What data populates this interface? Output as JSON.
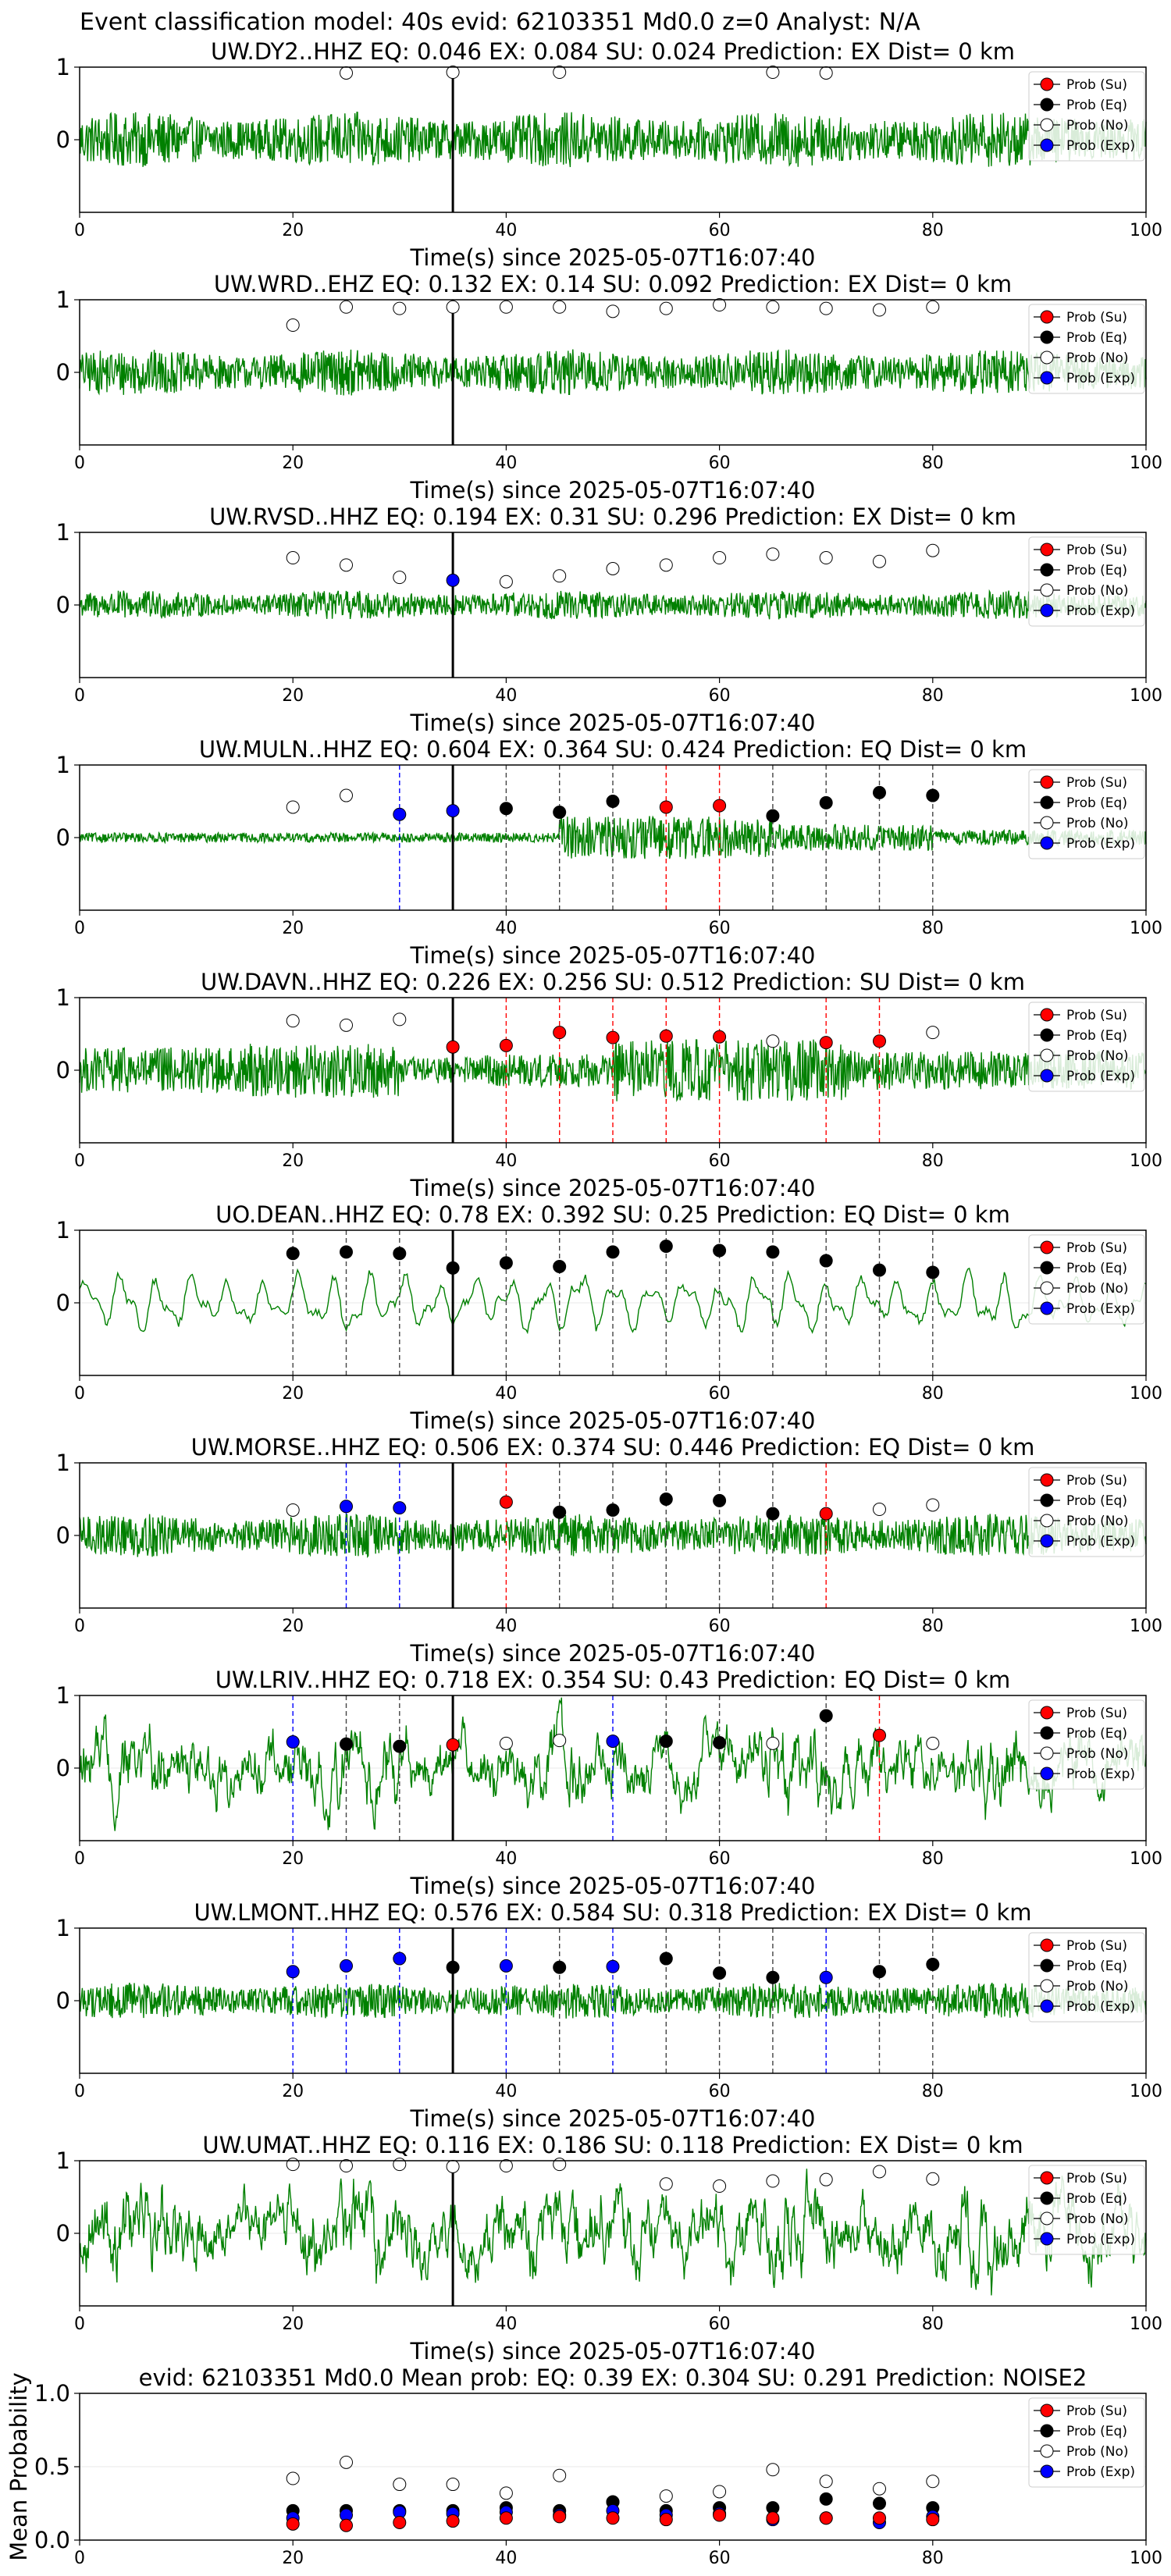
{
  "figure_title": "Event classification model: 40s evid: 62103351 Md0.0 z=0 Analyst: N/A",
  "colors": {
    "waveform": "#008000",
    "su": "#ff0000",
    "eq": "#000000",
    "no": "#ffffff",
    "exp": "#0000ff",
    "pick_line": "#000000",
    "frame": "#000000"
  },
  "legend": {
    "placement": "top-right",
    "entries": [
      {
        "key": "su",
        "label": "Prob (Su)"
      },
      {
        "key": "eq",
        "label": "Prob (Eq)"
      },
      {
        "key": "no",
        "label": "Prob (No)"
      },
      {
        "key": "exp",
        "label": "Prob (Exp)"
      }
    ]
  },
  "chart_data": [
    {
      "type": "line",
      "station": "UW.DY2..HHZ",
      "title": "UW.DY2..HHZ   EQ: 0.046  EX: 0.084  SU: 0.024   Prediction: EX    Dist= 0 km",
      "xlabel": "Time(s) since 2025-05-07T16:07:40",
      "xlim": [
        0,
        100
      ],
      "ylim": [
        -1,
        1
      ],
      "xticks": [
        0,
        20,
        40,
        60,
        80,
        100
      ],
      "yticks": [
        0,
        1
      ],
      "pick_time": 35,
      "waveform": {
        "amplitude": 0.38,
        "style": "noise"
      },
      "windows": [
        {
          "t": 25,
          "class": "no",
          "p": 0.92
        },
        {
          "t": 35,
          "class": "no",
          "p": 0.93
        },
        {
          "t": 45,
          "class": "no",
          "p": 0.93
        },
        {
          "t": 65,
          "class": "no",
          "p": 0.93
        },
        {
          "t": 70,
          "class": "no",
          "p": 0.92
        }
      ]
    },
    {
      "type": "line",
      "station": "UW.WRD..EHZ",
      "title": "UW.WRD..EHZ   EQ: 0.132  EX: 0.14  SU: 0.092   Prediction: EX    Dist= 0 km",
      "xlabel": "Time(s) since 2025-05-07T16:07:40",
      "xlim": [
        0,
        100
      ],
      "ylim": [
        -1,
        1
      ],
      "xticks": [
        0,
        20,
        40,
        60,
        80,
        100
      ],
      "yticks": [
        0,
        1
      ],
      "pick_time": 35,
      "waveform": {
        "amplitude": 0.32,
        "style": "noise"
      },
      "windows": [
        {
          "t": 20,
          "class": "no",
          "p": 0.65
        },
        {
          "t": 25,
          "class": "no",
          "p": 0.9
        },
        {
          "t": 30,
          "class": "no",
          "p": 0.88
        },
        {
          "t": 35,
          "class": "no",
          "p": 0.9
        },
        {
          "t": 40,
          "class": "no",
          "p": 0.9
        },
        {
          "t": 45,
          "class": "no",
          "p": 0.9
        },
        {
          "t": 50,
          "class": "no",
          "p": 0.84
        },
        {
          "t": 55,
          "class": "no",
          "p": 0.88
        },
        {
          "t": 60,
          "class": "no",
          "p": 0.93
        },
        {
          "t": 65,
          "class": "no",
          "p": 0.9
        },
        {
          "t": 70,
          "class": "no",
          "p": 0.88
        },
        {
          "t": 75,
          "class": "no",
          "p": 0.86
        },
        {
          "t": 80,
          "class": "no",
          "p": 0.9
        }
      ]
    },
    {
      "type": "line",
      "station": "UW.RVSD..HHZ",
      "title": "UW.RVSD..HHZ   EQ: 0.194  EX: 0.31  SU: 0.296   Prediction: EX    Dist= 0 km",
      "xlabel": "Time(s) since 2025-05-07T16:07:40",
      "xlim": [
        0,
        100
      ],
      "ylim": [
        -1,
        1
      ],
      "xticks": [
        0,
        20,
        40,
        60,
        80,
        100
      ],
      "yticks": [
        0,
        1
      ],
      "pick_time": 35,
      "waveform": {
        "amplitude": 0.2,
        "style": "noise"
      },
      "windows": [
        {
          "t": 20,
          "class": "no",
          "p": 0.65
        },
        {
          "t": 25,
          "class": "no",
          "p": 0.55
        },
        {
          "t": 30,
          "class": "no",
          "p": 0.38
        },
        {
          "t": 35,
          "class": "exp",
          "p": 0.34
        },
        {
          "t": 40,
          "class": "no",
          "p": 0.32
        },
        {
          "t": 45,
          "class": "no",
          "p": 0.4
        },
        {
          "t": 50,
          "class": "no",
          "p": 0.5
        },
        {
          "t": 55,
          "class": "no",
          "p": 0.55
        },
        {
          "t": 60,
          "class": "no",
          "p": 0.65
        },
        {
          "t": 65,
          "class": "no",
          "p": 0.7
        },
        {
          "t": 70,
          "class": "no",
          "p": 0.65
        },
        {
          "t": 75,
          "class": "no",
          "p": 0.6
        },
        {
          "t": 80,
          "class": "no",
          "p": 0.75
        }
      ]
    },
    {
      "type": "line",
      "station": "UW.MULN..HHZ",
      "title": "UW.MULN..HHZ   EQ: 0.604  EX: 0.364  SU: 0.424   Prediction: EQ    Dist= 0 km",
      "xlabel": "Time(s) since 2025-05-07T16:07:40",
      "xlim": [
        0,
        100
      ],
      "ylim": [
        -1,
        1
      ],
      "xticks": [
        0,
        20,
        40,
        60,
        80,
        100
      ],
      "yticks": [
        0,
        1
      ],
      "pick_time": 35,
      "waveform": {
        "amplitude": 0.3,
        "style": "quiet-then-event"
      },
      "windows": [
        {
          "t": 20,
          "class": "no",
          "p": 0.42
        },
        {
          "t": 25,
          "class": "no",
          "p": 0.58
        },
        {
          "t": 30,
          "class": "exp",
          "p": 0.32
        },
        {
          "t": 35,
          "class": "exp",
          "p": 0.37
        },
        {
          "t": 40,
          "class": "eq",
          "p": 0.4
        },
        {
          "t": 45,
          "class": "eq",
          "p": 0.35
        },
        {
          "t": 50,
          "class": "eq",
          "p": 0.5
        },
        {
          "t": 55,
          "class": "su",
          "p": 0.42
        },
        {
          "t": 60,
          "class": "su",
          "p": 0.44
        },
        {
          "t": 65,
          "class": "eq",
          "p": 0.3
        },
        {
          "t": 70,
          "class": "eq",
          "p": 0.48
        },
        {
          "t": 75,
          "class": "eq",
          "p": 0.62
        },
        {
          "t": 80,
          "class": "eq",
          "p": 0.58
        }
      ]
    },
    {
      "type": "line",
      "station": "UW.DAVN..HHZ",
      "title": "UW.DAVN..HHZ   EQ: 0.226  EX: 0.256  SU: 0.512   Prediction: SU    Dist= 0 km",
      "xlabel": "Time(s) since 2025-05-07T16:07:40",
      "xlim": [
        0,
        100
      ],
      "ylim": [
        -1,
        1
      ],
      "xticks": [
        0,
        20,
        40,
        60,
        80,
        100
      ],
      "yticks": [
        0,
        1
      ],
      "pick_time": 35,
      "waveform": {
        "amplitude": 0.45,
        "style": "bursty"
      },
      "windows": [
        {
          "t": 20,
          "class": "no",
          "p": 0.68
        },
        {
          "t": 25,
          "class": "no",
          "p": 0.62
        },
        {
          "t": 30,
          "class": "no",
          "p": 0.7
        },
        {
          "t": 35,
          "class": "su",
          "p": 0.32
        },
        {
          "t": 40,
          "class": "su",
          "p": 0.34
        },
        {
          "t": 45,
          "class": "su",
          "p": 0.52
        },
        {
          "t": 50,
          "class": "su",
          "p": 0.45
        },
        {
          "t": 55,
          "class": "su",
          "p": 0.47
        },
        {
          "t": 60,
          "class": "su",
          "p": 0.46
        },
        {
          "t": 65,
          "class": "no",
          "p": 0.4
        },
        {
          "t": 70,
          "class": "su",
          "p": 0.38
        },
        {
          "t": 75,
          "class": "su",
          "p": 0.4
        },
        {
          "t": 80,
          "class": "no",
          "p": 0.52
        }
      ]
    },
    {
      "type": "line",
      "station": "UO.DEAN..HHZ",
      "title": "UO.DEAN..HHZ   EQ: 0.78  EX: 0.392  SU: 0.25   Prediction: EQ    Dist= 0 km",
      "xlabel": "Time(s) since 2025-05-07T16:07:40",
      "xlim": [
        0,
        100
      ],
      "ylim": [
        -1,
        1
      ],
      "xticks": [
        0,
        20,
        40,
        60,
        80,
        100
      ],
      "yticks": [
        0,
        1
      ],
      "pick_time": 35,
      "waveform": {
        "amplitude": 0.5,
        "style": "smooth"
      },
      "windows": [
        {
          "t": 20,
          "class": "eq",
          "p": 0.68
        },
        {
          "t": 25,
          "class": "eq",
          "p": 0.7
        },
        {
          "t": 30,
          "class": "eq",
          "p": 0.68
        },
        {
          "t": 35,
          "class": "eq",
          "p": 0.48
        },
        {
          "t": 40,
          "class": "eq",
          "p": 0.55
        },
        {
          "t": 45,
          "class": "eq",
          "p": 0.5
        },
        {
          "t": 50,
          "class": "eq",
          "p": 0.7
        },
        {
          "t": 55,
          "class": "eq",
          "p": 0.78
        },
        {
          "t": 60,
          "class": "eq",
          "p": 0.72
        },
        {
          "t": 65,
          "class": "eq",
          "p": 0.7
        },
        {
          "t": 70,
          "class": "eq",
          "p": 0.58
        },
        {
          "t": 75,
          "class": "eq",
          "p": 0.45
        },
        {
          "t": 80,
          "class": "eq",
          "p": 0.42
        }
      ]
    },
    {
      "type": "line",
      "station": "UW.MORSE..HHZ",
      "title": "UW.MORSE..HHZ   EQ: 0.506  EX: 0.374  SU: 0.446   Prediction: EQ    Dist= 0 km",
      "xlabel": "Time(s) since 2025-05-07T16:07:40",
      "xlim": [
        0,
        100
      ],
      "ylim": [
        -1,
        1
      ],
      "xticks": [
        0,
        20,
        40,
        60,
        80,
        100
      ],
      "yticks": [
        0,
        1
      ],
      "pick_time": 35,
      "waveform": {
        "amplitude": 0.3,
        "style": "noise"
      },
      "windows": [
        {
          "t": 20,
          "class": "no",
          "p": 0.35
        },
        {
          "t": 25,
          "class": "exp",
          "p": 0.4
        },
        {
          "t": 30,
          "class": "exp",
          "p": 0.38
        },
        {
          "t": 40,
          "class": "su",
          "p": 0.46
        },
        {
          "t": 45,
          "class": "eq",
          "p": 0.32
        },
        {
          "t": 50,
          "class": "eq",
          "p": 0.35
        },
        {
          "t": 55,
          "class": "eq",
          "p": 0.5
        },
        {
          "t": 60,
          "class": "eq",
          "p": 0.48
        },
        {
          "t": 65,
          "class": "eq",
          "p": 0.3
        },
        {
          "t": 70,
          "class": "su",
          "p": 0.3
        },
        {
          "t": 75,
          "class": "no",
          "p": 0.36
        },
        {
          "t": 80,
          "class": "no",
          "p": 0.42
        }
      ]
    },
    {
      "type": "line",
      "station": "UW.LRIV..HHZ",
      "title": "UW.LRIV..HHZ   EQ: 0.718  EX: 0.354  SU: 0.43   Prediction: EQ    Dist= 0 km",
      "xlabel": "Time(s) since 2025-05-07T16:07:40",
      "xlim": [
        0,
        100
      ],
      "ylim": [
        -1,
        1
      ],
      "xticks": [
        0,
        20,
        40,
        60,
        80,
        100
      ],
      "yticks": [
        0,
        1
      ],
      "pick_time": 35,
      "waveform": {
        "amplitude": 0.45,
        "style": "smooth-noise"
      },
      "windows": [
        {
          "t": 20,
          "class": "exp",
          "p": 0.36
        },
        {
          "t": 25,
          "class": "eq",
          "p": 0.33
        },
        {
          "t": 30,
          "class": "eq",
          "p": 0.3
        },
        {
          "t": 35,
          "class": "su",
          "p": 0.32
        },
        {
          "t": 40,
          "class": "no",
          "p": 0.34
        },
        {
          "t": 45,
          "class": "no",
          "p": 0.38
        },
        {
          "t": 50,
          "class": "exp",
          "p": 0.37
        },
        {
          "t": 55,
          "class": "eq",
          "p": 0.37
        },
        {
          "t": 60,
          "class": "eq",
          "p": 0.35
        },
        {
          "t": 65,
          "class": "no",
          "p": 0.34
        },
        {
          "t": 70,
          "class": "eq",
          "p": 0.72
        },
        {
          "t": 75,
          "class": "su",
          "p": 0.45
        },
        {
          "t": 80,
          "class": "no",
          "p": 0.34
        }
      ]
    },
    {
      "type": "line",
      "station": "UW.LMONT..HHZ",
      "title": "UW.LMONT..HHZ   EQ: 0.576  EX: 0.584  SU: 0.318   Prediction: EX    Dist= 0 km",
      "xlabel": "Time(s) since 2025-05-07T16:07:40",
      "xlim": [
        0,
        100
      ],
      "ylim": [
        -1,
        1
      ],
      "xticks": [
        0,
        20,
        40,
        60,
        80,
        100
      ],
      "yticks": [
        0,
        1
      ],
      "pick_time": 35,
      "waveform": {
        "amplitude": 0.25,
        "style": "noise"
      },
      "windows": [
        {
          "t": 20,
          "class": "exp",
          "p": 0.4
        },
        {
          "t": 25,
          "class": "exp",
          "p": 0.48
        },
        {
          "t": 30,
          "class": "exp",
          "p": 0.58
        },
        {
          "t": 35,
          "class": "eq",
          "p": 0.46
        },
        {
          "t": 40,
          "class": "exp",
          "p": 0.48
        },
        {
          "t": 45,
          "class": "eq",
          "p": 0.46
        },
        {
          "t": 50,
          "class": "exp",
          "p": 0.47
        },
        {
          "t": 55,
          "class": "eq",
          "p": 0.58
        },
        {
          "t": 60,
          "class": "eq",
          "p": 0.38
        },
        {
          "t": 65,
          "class": "eq",
          "p": 0.32
        },
        {
          "t": 70,
          "class": "exp",
          "p": 0.32
        },
        {
          "t": 75,
          "class": "eq",
          "p": 0.4
        },
        {
          "t": 80,
          "class": "eq",
          "p": 0.5
        }
      ]
    },
    {
      "type": "line",
      "station": "UW.UMAT..HHZ",
      "title": "UW.UMAT..HHZ   EQ: 0.116  EX: 0.186  SU: 0.118   Prediction: EX    Dist= 0 km",
      "xlabel": "Time(s) since 2025-05-07T16:07:40",
      "xlim": [
        0,
        100
      ],
      "ylim": [
        -1,
        1
      ],
      "xticks": [
        0,
        20,
        40,
        60,
        80,
        100
      ],
      "yticks": [
        0,
        1
      ],
      "pick_time": 35,
      "waveform": {
        "amplitude": 0.5,
        "style": "smooth-noise"
      },
      "windows": [
        {
          "t": 20,
          "class": "no",
          "p": 0.95
        },
        {
          "t": 25,
          "class": "no",
          "p": 0.93
        },
        {
          "t": 30,
          "class": "no",
          "p": 0.95
        },
        {
          "t": 35,
          "class": "no",
          "p": 0.92
        },
        {
          "t": 40,
          "class": "no",
          "p": 0.93
        },
        {
          "t": 45,
          "class": "no",
          "p": 0.95
        },
        {
          "t": 55,
          "class": "no",
          "p": 0.68
        },
        {
          "t": 60,
          "class": "no",
          "p": 0.65
        },
        {
          "t": 65,
          "class": "no",
          "p": 0.72
        },
        {
          "t": 70,
          "class": "no",
          "p": 0.74
        },
        {
          "t": 75,
          "class": "no",
          "p": 0.85
        },
        {
          "t": 80,
          "class": "no",
          "p": 0.75
        }
      ]
    },
    {
      "type": "scatter",
      "title": "evid: 62103351  Md0.0   Mean prob:   EQ: 0.39  EX: 0.304  SU: 0.291   Prediction: NOISE2",
      "ylabel": "Mean Probability",
      "xlim": [
        0,
        100
      ],
      "ylim": [
        0,
        1
      ],
      "xticks": [
        0,
        20,
        40,
        60,
        80,
        100
      ],
      "yticks": [
        0.0,
        0.5,
        1.0
      ],
      "ytick_labels": [
        "0.0",
        "0.5",
        "1.0"
      ],
      "x": [
        20,
        25,
        30,
        35,
        40,
        45,
        50,
        55,
        60,
        65,
        70,
        75,
        80
      ],
      "series": [
        {
          "name": "Prob (No)",
          "key": "no",
          "values": [
            0.42,
            0.53,
            0.38,
            0.38,
            0.32,
            0.44,
            0.26,
            0.3,
            0.33,
            0.48,
            0.4,
            0.35,
            0.4
          ]
        },
        {
          "name": "Prob (Eq)",
          "key": "eq",
          "values": [
            0.2,
            0.2,
            0.2,
            0.2,
            0.22,
            0.2,
            0.26,
            0.2,
            0.22,
            0.22,
            0.28,
            0.25,
            0.22
          ]
        },
        {
          "name": "Prob (Exp)",
          "key": "exp",
          "values": [
            0.15,
            0.17,
            0.19,
            0.18,
            0.19,
            0.17,
            0.2,
            0.17,
            0.18,
            0.14,
            0.15,
            0.12,
            0.16
          ]
        },
        {
          "name": "Prob (Su)",
          "key": "su",
          "values": [
            0.11,
            0.1,
            0.12,
            0.13,
            0.15,
            0.16,
            0.15,
            0.14,
            0.17,
            0.15,
            0.15,
            0.15,
            0.14
          ]
        }
      ]
    }
  ]
}
